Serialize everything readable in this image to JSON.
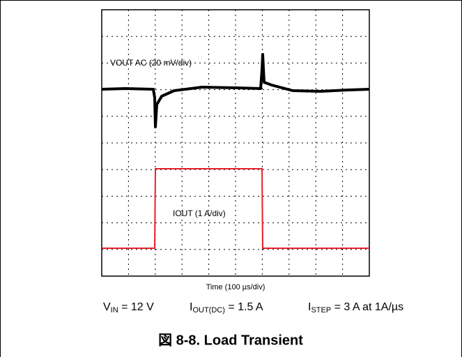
{
  "plot": {
    "vout_label": "VOUT AC (20 mV/div)",
    "iout_label": "IOUT (1 A/div)",
    "time_label": "Time (100 µs/div)"
  },
  "conditions": [
    {
      "main": "V",
      "sub": "IN",
      "rest": " = 12 V"
    },
    {
      "main": "I",
      "sub": "OUT(DC)",
      "rest": " = 1.5 A"
    },
    {
      "main": "I",
      "sub": "STEP",
      "rest": " = 3 A at 1A/µs"
    }
  ],
  "caption": "図 8-8. Load Transient"
}
